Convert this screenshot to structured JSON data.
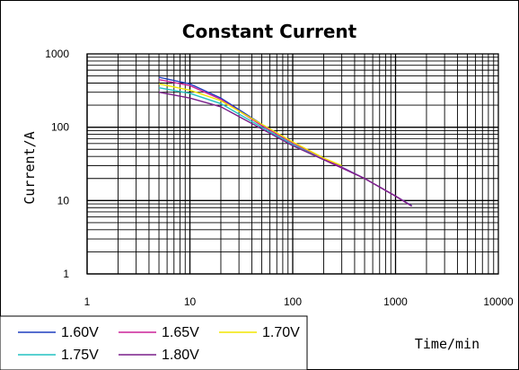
{
  "chart_data": {
    "type": "line",
    "title": "Constant Current",
    "xlabel": "Time/min",
    "ylabel": "Current/A",
    "xscale": "log",
    "yscale": "log",
    "xlim": [
      1,
      10000
    ],
    "ylim": [
      1,
      1000
    ],
    "xticks": [
      "1",
      "10",
      "100",
      "1000",
      "10000"
    ],
    "yticks": [
      "1",
      "10",
      "100",
      "1000"
    ],
    "grid": true,
    "legend_position": "bottom-left",
    "series": [
      {
        "name": "1.60V",
        "color": "#1f3fbf",
        "x": [
          5,
          10,
          20,
          50,
          100,
          200,
          500,
          1000,
          1440
        ],
        "y": [
          480,
          390,
          250,
          110,
          62,
          38,
          20,
          11.5,
          8.5
        ]
      },
      {
        "name": "1.65V",
        "color": "#cc2299",
        "x": [
          5,
          10,
          20,
          50,
          100,
          200,
          500,
          1000,
          1400
        ],
        "y": [
          445,
          370,
          240,
          105,
          61,
          37,
          20,
          11.5,
          8.6
        ]
      },
      {
        "name": "1.70V",
        "color": "#f2e600",
        "x": [
          5,
          10,
          20,
          50,
          100,
          200,
          300
        ],
        "y": [
          390,
          320,
          230,
          110,
          63,
          38,
          30
        ]
      },
      {
        "name": "1.75V",
        "color": "#22c2c2",
        "x": [
          5,
          10,
          20,
          50,
          100,
          200
        ],
        "y": [
          345,
          290,
          210,
          100,
          58,
          36
        ]
      },
      {
        "name": "1.80V",
        "color": "#7a1f8a",
        "x": [
          5,
          10,
          20,
          50,
          100,
          200,
          500,
          1000,
          1440
        ],
        "y": [
          300,
          250,
          190,
          95,
          56,
          36,
          20,
          11.5,
          8.4
        ]
      }
    ]
  }
}
